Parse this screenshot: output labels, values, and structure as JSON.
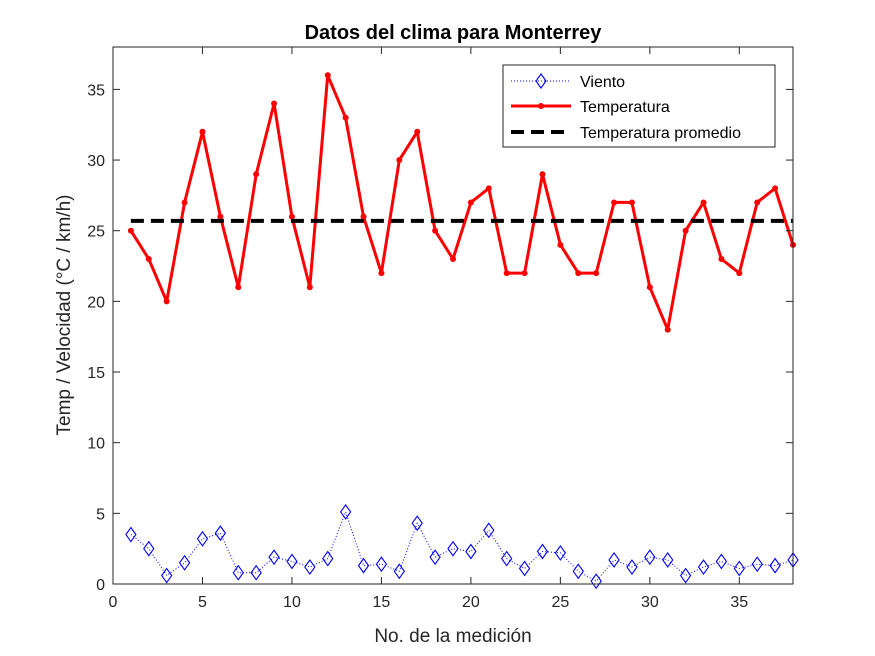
{
  "chart_data": {
    "type": "line",
    "title": "Datos del clima para Monterrey",
    "xlabel": "No. de la medición",
    "ylabel": "Temp / Velocidad (°C / km/h)",
    "xlim": [
      0,
      38
    ],
    "ylim": [
      0,
      38
    ],
    "xticks": [
      0,
      5,
      10,
      15,
      20,
      25,
      30,
      35
    ],
    "yticks": [
      0,
      5,
      10,
      15,
      20,
      25,
      30,
      35
    ],
    "grid": false,
    "legend_position": "top-right",
    "x": [
      1,
      2,
      3,
      4,
      5,
      6,
      7,
      8,
      9,
      10,
      11,
      12,
      13,
      14,
      15,
      16,
      17,
      18,
      19,
      20,
      21,
      22,
      23,
      24,
      25,
      26,
      27,
      28,
      29,
      30,
      31,
      32,
      33,
      34,
      35,
      36,
      37,
      38
    ],
    "series": [
      {
        "name": "Viento",
        "style": "dotted-diamond",
        "color": "#0000ff",
        "values": [
          3.5,
          2.5,
          0.6,
          1.5,
          3.2,
          3.6,
          0.8,
          0.8,
          1.9,
          1.6,
          1.2,
          1.8,
          5.1,
          1.3,
          1.4,
          0.9,
          4.3,
          1.9,
          2.5,
          2.3,
          3.8,
          1.8,
          1.1,
          2.3,
          2.2,
          0.9,
          0.2,
          1.7,
          1.2,
          1.9,
          1.7,
          0.6,
          1.2,
          1.6,
          1.1,
          1.4,
          1.3,
          1.7
        ]
      },
      {
        "name": "Temperatura",
        "style": "solid-dot",
        "color": "#ff0000",
        "values": [
          25,
          23,
          20,
          27,
          32,
          26,
          21,
          29,
          34,
          26,
          21,
          36,
          33,
          26,
          22,
          30,
          32,
          25,
          23,
          27,
          28,
          22,
          22,
          29,
          24,
          22,
          22,
          27,
          27,
          21,
          18,
          25,
          27,
          23,
          22,
          27,
          28,
          24
        ]
      },
      {
        "name": "Temperatura promedio",
        "style": "dashed",
        "color": "#000000",
        "value": 25.7
      }
    ]
  }
}
